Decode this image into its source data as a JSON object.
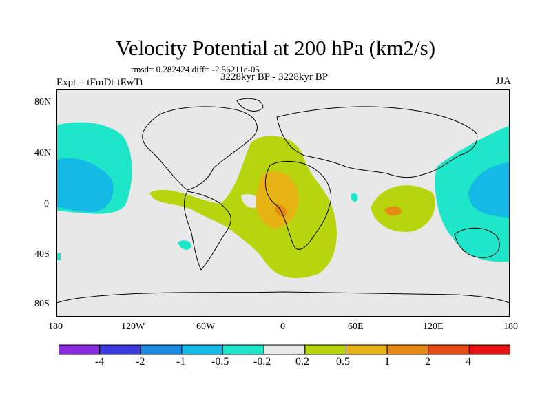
{
  "figure": {
    "title": "Velocity Potential at 200 hPa (km2/s)",
    "stats": "rmsd= 0.282424 diff= -2.56211e-05",
    "experiment": "Expt = tFmDt-tEwTt",
    "period": "3228kyr BP - 3228kyr BP",
    "season": "JJA"
  },
  "axes": {
    "lat_labels": [
      "80N",
      "40N",
      "0",
      "40S",
      "80S"
    ],
    "lon_labels": [
      "180",
      "120W",
      "60W",
      "0",
      "60E",
      "120E",
      "180"
    ]
  },
  "colorbar": {
    "colors": [
      "#8a2be2",
      "#3a3ae0",
      "#1e88e5",
      "#14b9e6",
      "#1ee6c8",
      "#e8e8e8",
      "#b7d40d",
      "#e6b214",
      "#e68a14",
      "#e64a14",
      "#e61414"
    ],
    "labels": [
      "-4",
      "-2",
      "-1",
      "-0.5",
      "-0.2",
      "0.2",
      "0.5",
      "1",
      "2",
      "4"
    ]
  },
  "colors": {
    "background": "#e8e8e8",
    "positive_weak": "#b7d40d",
    "positive_mid": "#e6b214",
    "positive_strong": "#e68a14",
    "negative_weak": "#1ee6c8",
    "negative_mid": "#14b9e6"
  }
}
